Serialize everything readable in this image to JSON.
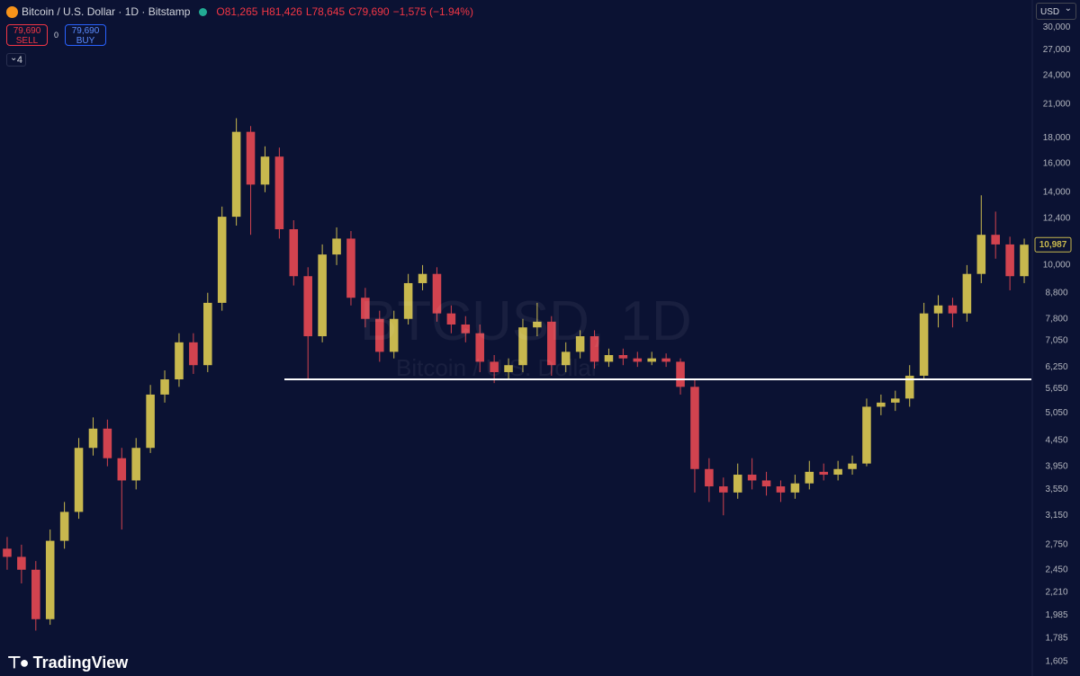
{
  "header": {
    "title": "Bitcoin / U.S. Dollar · 1D · Bitstamp",
    "open": "O81,265",
    "high": "H81,426",
    "low": "L78,645",
    "close": "C79,690",
    "change": "−1,575 (−1.94%)"
  },
  "trade": {
    "sell_price": "79,690",
    "sell_label": "SELL",
    "spread": "0",
    "buy_price": "79,690",
    "buy_label": "BUY",
    "indicators": "4"
  },
  "currency": "USD",
  "watermark": {
    "symbol": "BTCUSD, 1D",
    "name": "Bitcoin / U.S. Dollar"
  },
  "branding": "TradingView",
  "chart_data": {
    "type": "candlestick",
    "log_scale": true,
    "grid": false,
    "up_color": "#c8b84e",
    "down_color": "#d2434f",
    "open": [
      2700,
      2600,
      2450,
      1950,
      2800,
      3200,
      4300,
      4700,
      4100,
      3700,
      4300,
      5500,
      5900,
      7000,
      6300,
      8400,
      12500,
      18500,
      14500,
      16500,
      11800,
      9500,
      7200,
      10500,
      11300,
      8600,
      7800,
      6700,
      7800,
      9200,
      9600,
      8000,
      7600,
      7300,
      6400,
      6100,
      6300,
      7500,
      7700,
      6300,
      6700,
      7200,
      6400,
      6600,
      6500,
      6400,
      6500,
      6400,
      5700,
      3900,
      3600,
      3500,
      3800,
      3700,
      3600,
      3500,
      3650,
      3850,
      3800,
      3900,
      4000,
      5200,
      5300,
      5400,
      6000,
      8000,
      8300,
      8000,
      9600,
      11500,
      11000,
      9500
    ],
    "high": [
      2850,
      2750,
      2550,
      2950,
      3350,
      4500,
      4950,
      4900,
      4300,
      4500,
      5750,
      6150,
      7300,
      7300,
      8800,
      13100,
      19700,
      19000,
      17300,
      17200,
      12300,
      9900,
      11000,
      11900,
      11700,
      9000,
      8100,
      8100,
      9600,
      10000,
      9900,
      8300,
      7900,
      7600,
      6600,
      6500,
      7800,
      8400,
      7900,
      7000,
      7400,
      7400,
      6800,
      6800,
      6700,
      6700,
      6650,
      6500,
      5900,
      4100,
      3750,
      4000,
      4100,
      3850,
      3700,
      3800,
      4050,
      4000,
      4050,
      4150,
      5400,
      5500,
      5600,
      6300,
      8400,
      8700,
      8600,
      10000,
      13800,
      12800,
      11400,
      11300
    ],
    "low": [
      2450,
      2300,
      1850,
      1900,
      2700,
      3100,
      4150,
      3950,
      2950,
      3550,
      4200,
      5300,
      5700,
      6050,
      6100,
      8100,
      12000,
      11500,
      14000,
      11300,
      9100,
      5900,
      7000,
      10000,
      8300,
      7500,
      6400,
      6500,
      7600,
      8900,
      7700,
      7300,
      7000,
      6100,
      5800,
      5900,
      6100,
      7200,
      6000,
      6100,
      6500,
      6200,
      6250,
      6300,
      6250,
      6300,
      6250,
      5500,
      3500,
      3350,
      3150,
      3400,
      3550,
      3450,
      3350,
      3400,
      3550,
      3700,
      3700,
      3800,
      3950,
      5000,
      5100,
      5200,
      5900,
      7500,
      7500,
      7700,
      9200,
      10300,
      8900,
      9200
    ],
    "close": [
      2600,
      2450,
      1950,
      2800,
      3200,
      4300,
      4700,
      4100,
      3700,
      4300,
      5500,
      5900,
      7000,
      6300,
      8400,
      12500,
      18500,
      14500,
      16500,
      11800,
      9500,
      7200,
      10500,
      11300,
      8600,
      7800,
      6700,
      7800,
      9200,
      9600,
      8000,
      7600,
      7300,
      6400,
      6100,
      6300,
      7500,
      7700,
      6300,
      6700,
      7200,
      6400,
      6600,
      6500,
      6400,
      6500,
      6400,
      5700,
      3900,
      3600,
      3500,
      3800,
      3700,
      3600,
      3500,
      3650,
      3850,
      3800,
      3900,
      4000,
      5200,
      5300,
      5400,
      6000,
      8000,
      8300,
      8000,
      9600,
      11500,
      11000,
      9500,
      10987
    ],
    "ylim": [
      1500,
      34000
    ],
    "yticks": [
      {
        "value": 30000,
        "label": "30,000"
      },
      {
        "value": 27000,
        "label": "27,000"
      },
      {
        "value": 24000,
        "label": "24,000"
      },
      {
        "value": 21000,
        "label": "21,000"
      },
      {
        "value": 18000,
        "label": "18,000"
      },
      {
        "value": 16000,
        "label": "16,000"
      },
      {
        "value": 14000,
        "label": "14,000"
      },
      {
        "value": 12400,
        "label": "12,400"
      },
      {
        "value": 10000,
        "label": "10,000"
      },
      {
        "value": 8800,
        "label": "8,800"
      },
      {
        "value": 7800,
        "label": "7,800"
      },
      {
        "value": 7050,
        "label": "7,050"
      },
      {
        "value": 6250,
        "label": "6,250"
      },
      {
        "value": 5650,
        "label": "5,650"
      },
      {
        "value": 5050,
        "label": "5,050"
      },
      {
        "value": 4450,
        "label": "4,450"
      },
      {
        "value": 3950,
        "label": "3,950"
      },
      {
        "value": 3550,
        "label": "3,550"
      },
      {
        "value": 3150,
        "label": "3,150"
      },
      {
        "value": 2750,
        "label": "2,750"
      },
      {
        "value": 2450,
        "label": "2,450"
      },
      {
        "value": 2210,
        "label": "2,210"
      },
      {
        "value": 1985,
        "label": "1,985"
      },
      {
        "value": 1785,
        "label": "1,785"
      },
      {
        "value": 1605,
        "label": "1,605"
      }
    ],
    "hline": {
      "value": 5900,
      "color": "#ffffff"
    },
    "last_price": {
      "value": 10987,
      "label": "10,987"
    }
  }
}
